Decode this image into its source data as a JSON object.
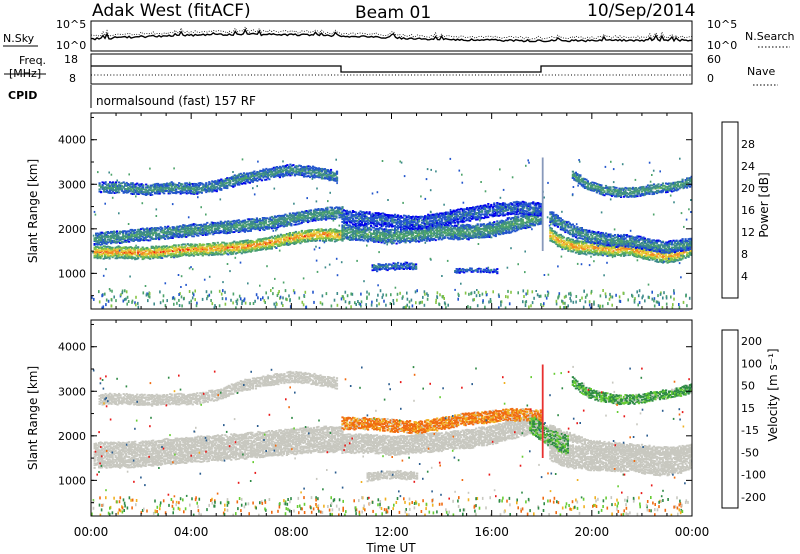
{
  "header": {
    "station": "Adak West (fitACF)",
    "beam": "Beam 01",
    "date": "10/Sep/2014"
  },
  "noise_panel": {
    "left_label": "N.Sky",
    "right_label": "N.Search",
    "left_ticks": [
      "10^5",
      "10^0"
    ],
    "right_ticks": [
      "10^5",
      "10^0"
    ]
  },
  "freq_panel": {
    "left_label_1": "Freq.",
    "left_label_2": "[MHz]",
    "left_ticks": [
      "18",
      "8"
    ],
    "right_label": "Nave",
    "right_ticks": [
      "60",
      "0"
    ]
  },
  "cpid": {
    "label": "CPID",
    "text": "normalsound (fast) 157 RF"
  },
  "chart_data": [
    {
      "type": "heatmap",
      "name": "power",
      "ylabel": "Slant Range [km]",
      "ylim": [
        200,
        4600
      ],
      "yticks": [
        "1000",
        "2000",
        "3000",
        "4000"
      ],
      "xlim": [
        0,
        24
      ],
      "colorbar": {
        "label": "Power [dB]",
        "ticks": [
          "4",
          "8",
          "12",
          "16",
          "20",
          "24",
          "28"
        ],
        "range": [
          0,
          32
        ],
        "colors": [
          "#0000ee",
          "#2255cc",
          "#3d8a8a",
          "#4ca36a",
          "#86c444",
          "#e8cc3a",
          "#f28a22",
          "#ee2211"
        ]
      },
      "echo_bands": [
        {
          "x": [
            0.1,
            10.0
          ],
          "center": [
            1500,
            1500,
            1480,
            1520,
            1560,
            1580,
            1620,
            1700,
            1820,
            1900,
            1880
          ],
          "halfwidth": 130,
          "level": 27
        },
        {
          "x": [
            0.1,
            10.0
          ],
          "center": [
            1800,
            1850,
            1900,
            1950,
            2000,
            2050,
            2100,
            2150,
            2250,
            2350,
            2400
          ],
          "halfwidth": 130,
          "level": 13
        },
        {
          "x": [
            0.3,
            9.8
          ],
          "center": [
            2950,
            2950,
            2900,
            2950,
            2920,
            3000,
            3150,
            3250,
            3350,
            3300,
            3200
          ],
          "halfwidth": 110,
          "level": 12
        },
        {
          "x": [
            10.0,
            18.0
          ],
          "center": [
            1950,
            1900,
            1850,
            1900,
            1950,
            1950,
            2000,
            2150,
            2300
          ],
          "halfwidth": 150,
          "level": 14
        },
        {
          "x": [
            10.0,
            18.0
          ],
          "center": [
            2300,
            2250,
            2200,
            2150,
            2250,
            2350,
            2450,
            2500,
            2450
          ],
          "halfwidth": 140,
          "level": 8
        },
        {
          "x": [
            11.2,
            13.0
          ],
          "center": [
            1150,
            1180,
            1200,
            1180
          ],
          "halfwidth": 70,
          "level": 9
        },
        {
          "x": [
            14.5,
            16.2
          ],
          "center": [
            1080,
            1100,
            1100,
            1080
          ],
          "halfwidth": 40,
          "level": 9
        },
        {
          "x": [
            18.3,
            24.0
          ],
          "center": [
            1900,
            1700,
            1620,
            1600,
            1580,
            1550,
            1580,
            1500,
            1450,
            1400,
            1450,
            1600
          ],
          "halfwidth": 140,
          "level": 26
        },
        {
          "x": [
            18.3,
            24.0
          ],
          "center": [
            2300,
            2100,
            1950,
            1850,
            1800,
            1750,
            1750,
            1700,
            1650,
            1600,
            1650,
            1700
          ],
          "halfwidth": 120,
          "level": 12
        },
        {
          "x": [
            19.2,
            24.0
          ],
          "center": [
            3250,
            3000,
            2900,
            2850,
            2850,
            2900,
            2950,
            3000,
            3100
          ],
          "halfwidth": 100,
          "level": 14
        }
      ]
    },
    {
      "type": "heatmap",
      "name": "velocity",
      "ylabel": "Slant Range [km]",
      "xlabel": "Time UT",
      "ylim": [
        200,
        4600
      ],
      "yticks": [
        "1000",
        "2000",
        "3000",
        "4000"
      ],
      "xlim": [
        0,
        24
      ],
      "xticks": [
        "00:00",
        "04:00",
        "08:00",
        "12:00",
        "16:00",
        "20:00",
        "00:00"
      ],
      "colorbar": {
        "label": "Velocity [m s⁻¹]",
        "ticks": [
          "200",
          "100",
          "50",
          "15",
          "-15",
          "-50",
          "-100",
          "-200"
        ],
        "colors": [
          "#1f3fcc",
          "#2b5d8f",
          "#2e8a45",
          "#66cc33",
          "#c8c8c0",
          "#f0b020",
          "#f06a10",
          "#e81818"
        ]
      },
      "echo_bands": [
        {
          "x": [
            0.1,
            10.0
          ],
          "center": [
            1600,
            1600,
            1620,
            1680,
            1720,
            1760,
            1800,
            1850,
            1900,
            1950,
            1950
          ],
          "halfwidth": 280,
          "level": 0
        },
        {
          "x": [
            0.3,
            9.8
          ],
          "center": [
            2850,
            2850,
            2820,
            2850,
            2850,
            2950,
            3150,
            3250,
            3350,
            3300,
            3200
          ],
          "halfwidth": 110,
          "level": 0
        },
        {
          "x": [
            10.0,
            18.0
          ],
          "center": [
            1850,
            1850,
            1800,
            1850,
            1900,
            1950,
            2050,
            2200,
            2350
          ],
          "halfwidth": 200,
          "level": 0
        },
        {
          "x": [
            10.0,
            18.0
          ],
          "center": [
            2300,
            2300,
            2250,
            2200,
            2300,
            2400,
            2450,
            2500,
            2450
          ],
          "halfwidth": 120,
          "level": -40
        },
        {
          "x": [
            11.0,
            13.0
          ],
          "center": [
            1100,
            1150,
            1150,
            1120
          ],
          "halfwidth": 80,
          "level": 0
        },
        {
          "x": [
            18.3,
            24.0
          ],
          "center": [
            1750,
            1600,
            1550,
            1520,
            1500,
            1480,
            1500,
            1450,
            1400,
            1400,
            1450,
            1550
          ],
          "halfwidth": 250,
          "level": 0
        },
        {
          "x": [
            18.3,
            24.0
          ],
          "center": [
            2200,
            2050,
            1950,
            1850,
            1800,
            1780,
            1760,
            1740,
            1700,
            1680,
            1700,
            1750
          ],
          "halfwidth": 80,
          "level": 0
        },
        {
          "x": [
            17.5,
            19.0
          ],
          "center": [
            2300,
            2000,
            1800
          ],
          "halfwidth": 200,
          "level": 30
        },
        {
          "x": [
            19.2,
            24.0
          ],
          "center": [
            3250,
            3000,
            2900,
            2850,
            2850,
            2900,
            2950,
            3000,
            3100
          ],
          "halfwidth": 100,
          "level": 40
        }
      ]
    }
  ]
}
